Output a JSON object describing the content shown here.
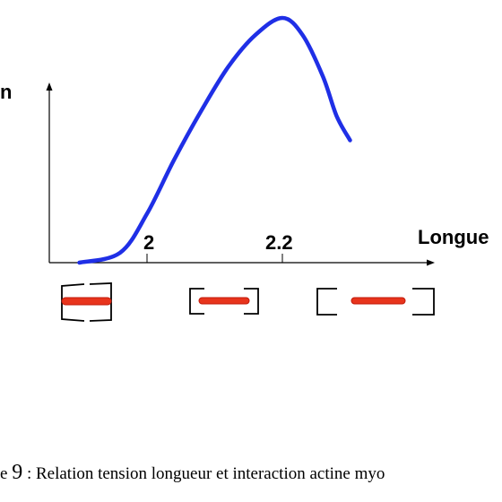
{
  "chart_data": {
    "type": "line",
    "ylabel": "n",
    "xlabel": "Longue",
    "x_ticks": [
      "2",
      "2.2"
    ],
    "series": [
      {
        "color": "#1f2fe6",
        "points": [
          [
            1.9,
            0.0
          ],
          [
            1.96,
            0.04
          ],
          [
            2.0,
            0.2
          ],
          [
            2.04,
            0.42
          ],
          [
            2.08,
            0.62
          ],
          [
            2.12,
            0.8
          ],
          [
            2.16,
            0.93
          ],
          [
            2.2,
            1.0
          ],
          [
            2.23,
            0.93
          ],
          [
            2.26,
            0.76
          ],
          [
            2.28,
            0.6
          ],
          [
            2.3,
            0.5
          ]
        ]
      }
    ],
    "sarcomere_icons": 3,
    "sarcomere_colors": {
      "bracket": "#000000",
      "filament": "#e8341c",
      "filament_edge": "#c11a0a"
    }
  },
  "caption": {
    "prefix": "e ",
    "number": "9",
    "text": " : Relation tension longueur et interaction actine myo"
  }
}
